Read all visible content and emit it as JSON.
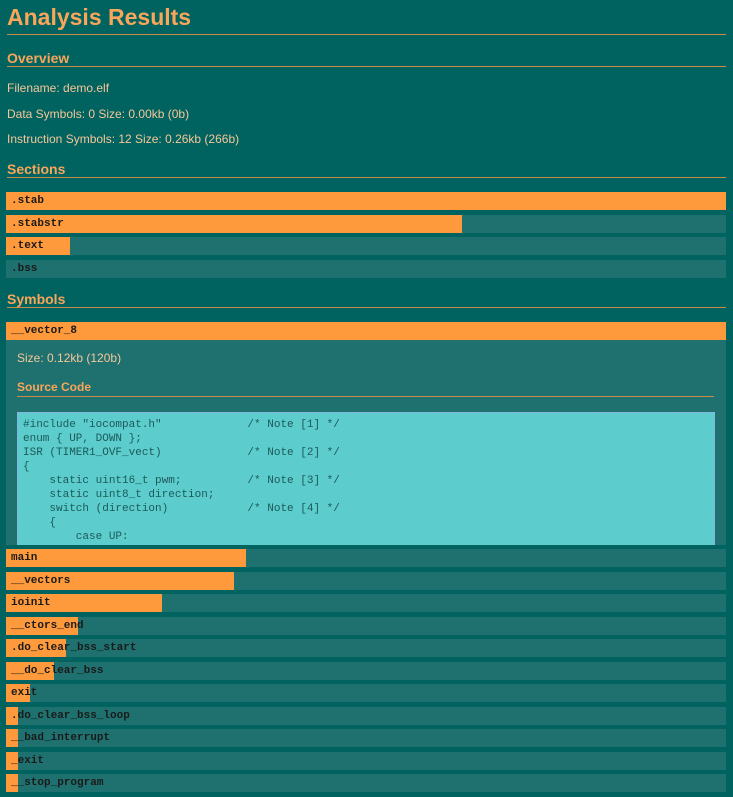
{
  "header": {
    "title": "Analysis Results"
  },
  "overview": {
    "heading": "Overview",
    "lines": [
      "Filename: demo.elf",
      "Data Symbols: 0 Size: 0.00kb (0b)",
      "Instruction Symbols: 12 Size: 0.26kb (266b)"
    ]
  },
  "sections": {
    "heading": "Sections",
    "items": [
      {
        "name": ".stab",
        "size": 3000
      },
      {
        "name": ".stabstr",
        "size": 1900
      },
      {
        "name": ".text",
        "size": 266
      },
      {
        "name": ".bss",
        "size": 0
      }
    ]
  },
  "symbols": {
    "heading": "Symbols",
    "items": [
      {
        "name": "__vector_8",
        "size": 120,
        "detail": {
          "size_text": "Size: 0.12kb (120b)",
          "source_heading": "Source Code",
          "code": [
            "#include \"iocompat.h\"             /* Note [1] */",
            "enum { UP, DOWN };",
            "ISR (TIMER1_OVF_vect)             /* Note [2] */",
            "{",
            "    static uint16_t pwm;          /* Note [3] */",
            "    static uint8_t direction;",
            "    switch (direction)            /* Note [4] */",
            "    {",
            "        case UP:"
          ]
        }
      },
      {
        "name": "main",
        "size": 40
      },
      {
        "name": "__vectors",
        "size": 38
      },
      {
        "name": "ioinit",
        "size": 26
      },
      {
        "name": "__ctors_end",
        "size": 12
      },
      {
        "name": ".do_clear_bss_start",
        "size": 10
      },
      {
        "name": "__do_clear_bss",
        "size": 8
      },
      {
        "name": "exit",
        "size": 4
      },
      {
        "name": ".do_clear_bss_loop",
        "size": 2
      },
      {
        "name": "__bad_interrupt",
        "size": 2
      },
      {
        "name": "_exit",
        "size": 2
      },
      {
        "name": "__stop_program",
        "size": 2
      }
    ]
  }
}
